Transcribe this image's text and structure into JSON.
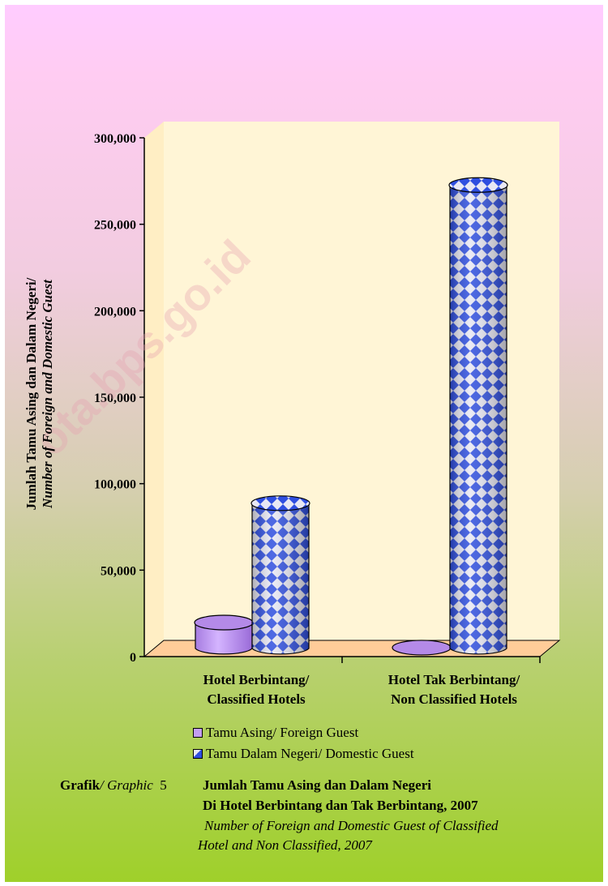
{
  "watermark": "ota.bps.go.id",
  "y_axis_label": {
    "line1": "Jumlah Tamu Asing dan Dalam Negeri/",
    "line2": "Number of Foreign and Domestic Guest"
  },
  "legend": [
    {
      "label": "Tamu Asing/ Foreign Guest",
      "color": "#c39ef0"
    },
    {
      "label": "Tamu Dalam Negeri/ Domestic Guest",
      "color": "#3050e0"
    }
  ],
  "caption": {
    "prefix_bold": "Grafik",
    "prefix_italic": "/ Graphic",
    "number": "5",
    "title_line1": "Jumlah Tamu Asing dan Dalam Negeri",
    "title_line2": "Di Hotel Berbintang dan Tak Berbintang, 2007",
    "subtitle_line1": "Number of Foreign and Domestic Guest of Classified",
    "subtitle_line2": "Hotel and Non Classified, 2007"
  },
  "chart_data": {
    "type": "bar",
    "categories": [
      [
        "Hotel Berbintang/",
        "Classified Hotels"
      ],
      [
        "Hotel Tak Berbintang/",
        "Non Classified Hotels"
      ]
    ],
    "series": [
      {
        "name": "Tamu Asing/ Foreign Guest",
        "values": [
          15000,
          500
        ]
      },
      {
        "name": "Tamu Dalam Negeri/ Domestic Guest",
        "values": [
          84000,
          268000
        ]
      }
    ],
    "ylim": [
      0,
      300000
    ],
    "yticks": [
      "0",
      "50,000",
      "100,000",
      "150,000",
      "200,000",
      "250,000",
      "300,000"
    ],
    "ytick_values": [
      0,
      50000,
      100000,
      150000,
      200000,
      250000,
      300000
    ],
    "bar_shape": "cylinder",
    "wall_color": "#fff5d6",
    "floor_color": "#ffcc99"
  }
}
